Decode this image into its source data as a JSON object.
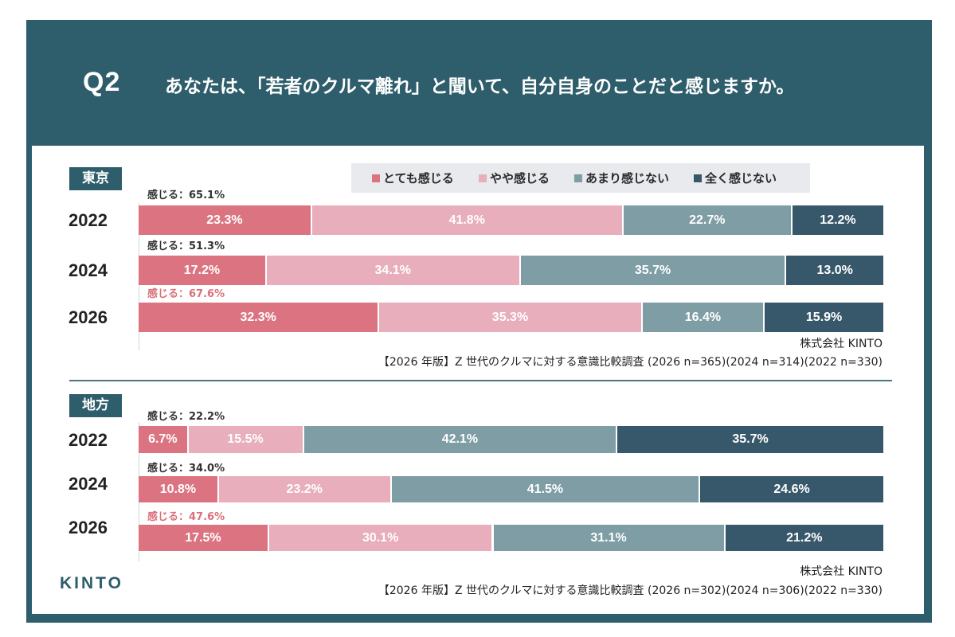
{
  "header": {
    "q_label": "Q2",
    "question": "あなたは、「若者のクルマ離れ」と聞いて、自分自身のことだと感じますか。"
  },
  "colors": {
    "frame": "#2e5d6b",
    "very": "#db7480",
    "somewhat": "#e8aebb",
    "not_much": "#7e9da5",
    "not_at_all": "#37586a",
    "highlight": "#d9707c"
  },
  "legend": [
    {
      "label": "とても感じる",
      "color_key": "very"
    },
    {
      "label": "やや感じる",
      "color_key": "somewhat"
    },
    {
      "label": "あまり感じない",
      "color_key": "not_much"
    },
    {
      "label": "全く感じない",
      "color_key": "not_at_all"
    }
  ],
  "logo": "KINTO",
  "chart_data": [
    {
      "type": "bar",
      "orientation": "horizontal-stacked-100",
      "region": "東京",
      "categories": [
        "2022",
        "2024",
        "2026"
      ],
      "series": [
        {
          "name": "とても感じる",
          "values": [
            23.3,
            17.2,
            32.3
          ]
        },
        {
          "name": "やや感じる",
          "values": [
            41.8,
            34.1,
            35.3
          ]
        },
        {
          "name": "あまり感じない",
          "values": [
            22.7,
            35.7,
            16.4
          ]
        },
        {
          "name": "全く感じない",
          "values": [
            12.2,
            13.0,
            15.9
          ]
        }
      ],
      "value_labels": [
        [
          "23.3%",
          "41.8%",
          "22.7%",
          "12.2%"
        ],
        [
          "17.2%",
          "34.1%",
          "35.7%",
          "13.0%"
        ],
        [
          "32.3%",
          "35.3%",
          "16.4%",
          "15.9%"
        ]
      ],
      "subtotals": [
        "感じる：65.1%",
        "感じる：51.3%",
        "感じる：67.6%"
      ],
      "highlight_row": 2,
      "source_company": "株式会社 KINTO",
      "source_text": "【2026 年版】Z 世代のクルマに対する意識比較調査 (2026 n=365)(2024 n=314)(2022 n=330)"
    },
    {
      "type": "bar",
      "orientation": "horizontal-stacked-100",
      "region": "地方",
      "categories": [
        "2022",
        "2024",
        "2026"
      ],
      "series": [
        {
          "name": "とても感じる",
          "values": [
            6.7,
            10.8,
            17.5
          ]
        },
        {
          "name": "やや感じる",
          "values": [
            15.5,
            23.2,
            30.1
          ]
        },
        {
          "name": "あまり感じない",
          "values": [
            42.1,
            41.5,
            31.1
          ]
        },
        {
          "name": "全く感じない",
          "values": [
            35.7,
            24.6,
            21.2
          ]
        }
      ],
      "value_labels": [
        [
          "6.7%",
          "15.5%",
          "42.1%",
          "35.7%"
        ],
        [
          "10.8%",
          "23.2%",
          "41.5%",
          "24.6%"
        ],
        [
          "17.5%",
          "30.1%",
          "31.1%",
          "21.2%"
        ]
      ],
      "subtotals": [
        "感じる：22.2%",
        "感じる：34.0%",
        "感じる：47.6%"
      ],
      "highlight_row": 2,
      "source_company": "株式会社 KINTO",
      "source_text": "【2026 年版】Z 世代のクルマに対する意識比較調査 (2026 n=302)(2024 n=306)(2022 n=330)"
    }
  ]
}
